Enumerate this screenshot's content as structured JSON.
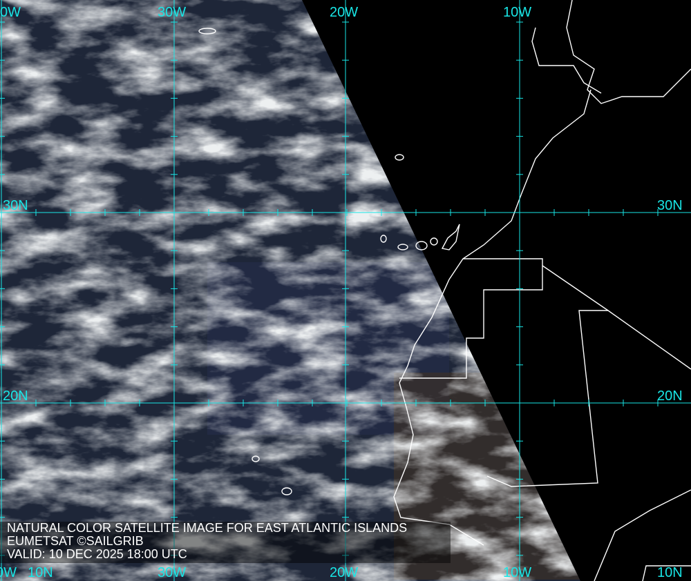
{
  "map": {
    "grid_color": "#19e6e6",
    "coast_color": "#ffffff",
    "longitude_labels_top": [
      "0W",
      "30W",
      "20W",
      "10W"
    ],
    "longitude_labels_bottom": [
      "0W",
      "30W",
      "20W",
      "10W"
    ],
    "latitude_labels_left": [
      "30N",
      "20N",
      "10N"
    ],
    "latitude_labels_right": [
      "30N",
      "20N",
      "10N"
    ]
  },
  "caption": {
    "title": "NATURAL COLOR SATELLITE IMAGE FOR EAST ATLANTIC ISLANDS",
    "credit": "EUMETSAT ©SAILGRIB",
    "valid": "VALID:  10 DEC 2025 18:00 UTC"
  }
}
